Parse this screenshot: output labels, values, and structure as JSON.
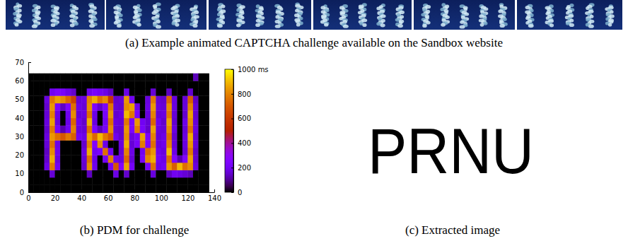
{
  "captions": {
    "a": "(a) Example animated CAPTCHA challenge available on the Sandbox website",
    "b": "(b) PDM for challenge",
    "c": "(c) Extracted image"
  },
  "chart_data": {
    "type": "heatmap",
    "xlim": [
      0,
      140
    ],
    "xticks": [
      0,
      20,
      40,
      60,
      80,
      100,
      120,
      140
    ],
    "ylim": [
      0,
      70
    ],
    "yticks": [
      0,
      10,
      20,
      30,
      40,
      50,
      60,
      70
    ],
    "x_bins": [
      0,
      4,
      8,
      12,
      16,
      20,
      24,
      28,
      32,
      36,
      40,
      44,
      48,
      52,
      56,
      60,
      64,
      68,
      72,
      76,
      80,
      84,
      88,
      92,
      96,
      100,
      104,
      108,
      112,
      116,
      120,
      124,
      128,
      132,
      136
    ],
    "y_bins": [
      0,
      4,
      8,
      12,
      16,
      20,
      24,
      28,
      32,
      36,
      40,
      44,
      48,
      52,
      56,
      60,
      64
    ],
    "cells": [
      [
        0,
        0,
        0,
        0,
        0,
        0,
        0,
        0,
        0,
        0,
        0,
        0,
        0,
        0,
        0,
        0,
        0,
        0,
        0,
        0,
        0,
        0,
        0,
        0,
        0,
        0,
        0,
        0,
        0,
        0,
        0,
        0,
        0,
        0
      ],
      [
        0,
        0,
        0,
        0,
        0,
        0,
        0,
        0,
        0,
        0,
        0,
        0,
        0,
        0,
        0,
        0,
        0,
        0,
        0,
        0,
        0,
        0,
        0,
        0,
        0,
        0,
        0,
        0,
        0,
        0,
        0,
        0,
        0,
        0
      ],
      [
        0,
        0,
        0,
        0,
        160,
        0,
        0,
        0,
        0,
        0,
        0,
        140,
        0,
        0,
        0,
        0,
        180,
        0,
        150,
        0,
        0,
        0,
        0,
        170,
        0,
        0,
        140,
        200,
        180,
        160,
        130,
        0,
        0,
        0
      ],
      [
        0,
        0,
        0,
        180,
        780,
        200,
        0,
        0,
        0,
        0,
        150,
        820,
        190,
        0,
        0,
        220,
        700,
        260,
        860,
        210,
        0,
        0,
        230,
        760,
        180,
        200,
        840,
        720,
        900,
        760,
        820,
        170,
        0,
        0
      ],
      [
        0,
        0,
        0,
        150,
        880,
        170,
        0,
        0,
        0,
        0,
        160,
        760,
        180,
        0,
        210,
        790,
        190,
        170,
        740,
        160,
        0,
        220,
        810,
        880,
        200,
        180,
        760,
        250,
        120,
        250,
        860,
        150,
        0,
        0
      ],
      [
        0,
        0,
        0,
        140,
        820,
        190,
        0,
        0,
        0,
        0,
        170,
        880,
        200,
        230,
        760,
        200,
        0,
        160,
        800,
        180,
        0,
        200,
        740,
        840,
        190,
        170,
        900,
        180,
        0,
        160,
        780,
        140,
        0,
        0
      ],
      [
        0,
        0,
        0,
        160,
        760,
        180,
        0,
        0,
        0,
        0,
        150,
        800,
        260,
        820,
        180,
        0,
        0,
        170,
        880,
        160,
        220,
        790,
        250,
        760,
        170,
        190,
        800,
        160,
        0,
        170,
        840,
        160,
        0,
        0
      ],
      [
        0,
        0,
        0,
        170,
        840,
        760,
        700,
        780,
        720,
        200,
        180,
        860,
        740,
        900,
        780,
        700,
        190,
        150,
        820,
        170,
        210,
        860,
        230,
        800,
        160,
        180,
        760,
        150,
        0,
        170,
        880,
        150,
        0,
        0
      ],
      [
        0,
        0,
        0,
        150,
        780,
        220,
        120,
        200,
        800,
        170,
        160,
        760,
        230,
        130,
        210,
        820,
        160,
        150,
        840,
        240,
        780,
        220,
        150,
        860,
        170,
        160,
        820,
        170,
        0,
        160,
        760,
        170,
        0,
        0
      ],
      [
        0,
        0,
        0,
        170,
        860,
        170,
        0,
        180,
        740,
        190,
        150,
        880,
        170,
        0,
        200,
        760,
        170,
        160,
        780,
        230,
        840,
        200,
        160,
        740,
        190,
        150,
        860,
        150,
        0,
        180,
        820,
        160,
        0,
        0
      ],
      [
        0,
        0,
        0,
        160,
        800,
        180,
        0,
        190,
        820,
        160,
        170,
        760,
        180,
        0,
        220,
        840,
        150,
        170,
        900,
        780,
        230,
        0,
        170,
        800,
        160,
        170,
        780,
        160,
        0,
        150,
        860,
        150,
        0,
        0
      ],
      [
        0,
        0,
        0,
        150,
        840,
        230,
        140,
        240,
        760,
        180,
        160,
        820,
        240,
        150,
        230,
        780,
        160,
        150,
        820,
        860,
        190,
        0,
        180,
        840,
        170,
        160,
        820,
        170,
        0,
        160,
        800,
        160,
        0,
        0
      ],
      [
        0,
        0,
        0,
        170,
        780,
        860,
        820,
        740,
        640,
        160,
        170,
        800,
        880,
        760,
        820,
        600,
        150,
        160,
        840,
        200,
        0,
        0,
        170,
        780,
        160,
        150,
        740,
        170,
        0,
        160,
        720,
        140,
        0,
        0
      ],
      [
        0,
        0,
        0,
        0,
        200,
        240,
        220,
        180,
        150,
        0,
        0,
        190,
        230,
        200,
        180,
        140,
        0,
        0,
        180,
        0,
        0,
        0,
        0,
        160,
        0,
        0,
        140,
        0,
        0,
        0,
        150,
        0,
        0,
        0
      ],
      [
        0,
        0,
        0,
        0,
        0,
        0,
        0,
        0,
        0,
        0,
        0,
        0,
        0,
        0,
        0,
        0,
        0,
        0,
        0,
        0,
        0,
        0,
        0,
        0,
        0,
        0,
        0,
        0,
        0,
        0,
        0,
        0,
        0,
        0
      ],
      [
        0,
        0,
        0,
        0,
        0,
        0,
        0,
        0,
        0,
        0,
        0,
        0,
        0,
        0,
        0,
        0,
        0,
        0,
        0,
        0,
        0,
        0,
        0,
        0,
        0,
        0,
        0,
        0,
        0,
        0,
        0,
        130,
        0,
        0
      ]
    ],
    "colorbar": {
      "range": [
        0,
        1000
      ],
      "ticks": [
        0,
        200,
        400,
        600,
        800,
        {
          "value": 1000,
          "label": "1000 ms"
        }
      ]
    }
  },
  "extracted_image": {
    "text": "PRNU"
  }
}
